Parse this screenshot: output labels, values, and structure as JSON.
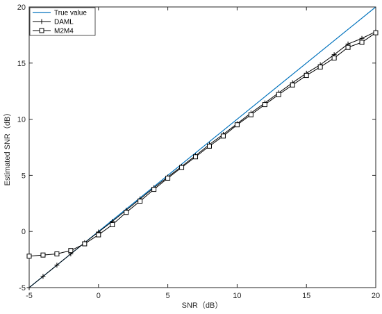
{
  "chart_data": {
    "type": "line",
    "xlabel": "SNR（dB）",
    "ylabel": "Estimated SNR（dB）",
    "xlim": [
      -5,
      20
    ],
    "ylim": [
      -5,
      20
    ],
    "x_ticks": [
      -5,
      0,
      5,
      10,
      15,
      20
    ],
    "y_ticks": [
      -5,
      0,
      5,
      10,
      15,
      20
    ],
    "grid": false,
    "legend_position": "top-left",
    "x": [
      -5,
      -4,
      -3,
      -2,
      -1,
      0,
      1,
      2,
      3,
      4,
      5,
      6,
      7,
      8,
      9,
      10,
      11,
      12,
      13,
      14,
      15,
      16,
      17,
      18,
      19,
      20
    ],
    "series": [
      {
        "name": "True value",
        "color": "#0072BD",
        "marker": "none",
        "x": [
          -5,
          20
        ],
        "values": [
          -5,
          20
        ]
      },
      {
        "name": "DAML",
        "color": "#000000",
        "marker": "plus",
        "values": [
          -5.0,
          -4.0,
          -3.0,
          -2.0,
          -1.0,
          -0.05,
          0.9,
          1.9,
          2.9,
          3.9,
          4.85,
          5.8,
          6.75,
          7.75,
          8.65,
          9.6,
          10.55,
          11.45,
          12.35,
          13.25,
          14.1,
          14.85,
          15.75,
          16.7,
          17.2,
          17.8
        ]
      },
      {
        "name": "M2M4",
        "color": "#000000",
        "marker": "square",
        "values": [
          -2.2,
          -2.1,
          -2.0,
          -1.7,
          -1.1,
          -0.3,
          0.6,
          1.7,
          2.7,
          3.75,
          4.75,
          5.7,
          6.65,
          7.6,
          8.5,
          9.5,
          10.4,
          11.3,
          12.2,
          13.05,
          13.9,
          14.65,
          15.45,
          16.4,
          16.85,
          17.7
        ]
      }
    ]
  }
}
